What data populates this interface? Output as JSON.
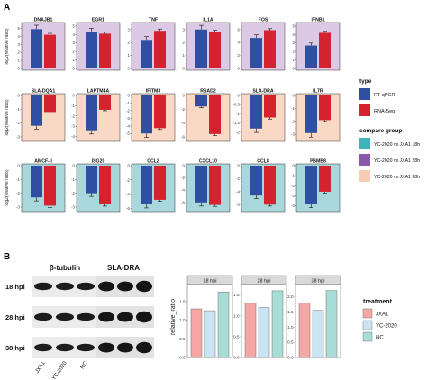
{
  "panel_a": {
    "label": "A",
    "ylabel": "log2(relative ratio)"
  },
  "panel_b": {
    "label": "B",
    "ylabel": "relative_ratio"
  },
  "colors": {
    "rtqpcr": "#2f4fa3",
    "rnaseq": "#d4232e",
    "bg_18h": "#dcc9e6",
    "bg_28h": "#a8d8dc",
    "bg_38h": "#f9d8c6",
    "legend_18h": "#3fb3bc",
    "legend_28h": "#8a5aa8",
    "legend_38h": "#f7cdb5",
    "treat_jxa1": "#f4a7a4",
    "treat_yc2020": "#c9e4f3",
    "treat_nc": "#a8dcd6"
  },
  "legend_type": {
    "title": "type",
    "items": [
      {
        "label": "RT-qPCR",
        "color": "#2f4fa3"
      },
      {
        "label": "RNA-Seq",
        "color": "#d4232e"
      }
    ]
  },
  "legend_group": {
    "title": "compare group",
    "items": [
      {
        "label": "YC-2020 vs JXA1 18h",
        "color": "#3fb3bc"
      },
      {
        "label": "YC-2020 vs JXA1 28h",
        "color": "#8a5aa8"
      },
      {
        "label": "YC-2020 vs JXA1 38h",
        "color": "#f7cdb5"
      }
    ]
  },
  "legend_treatment": {
    "title": "treatment",
    "items": [
      {
        "label": "JXA1",
        "color": "#f4a7a4"
      },
      {
        "label": "YC-2020",
        "color": "#c9e4f3"
      },
      {
        "label": "NC",
        "color": "#a8dcd6"
      }
    ]
  },
  "blot": {
    "col_headers": [
      "β-tubulin",
      "SLA-DRA"
    ],
    "row_labels": [
      "18 hpi",
      "28 hpi",
      "38 hpi"
    ],
    "lane_labels": [
      "JXA1",
      "YC-2020",
      "NC"
    ]
  },
  "chart_data": [
    {
      "type": "bar",
      "panel": "A",
      "series_names": [
        "RT-qPCR",
        "RNA-Seq"
      ],
      "facets": [
        {
          "gene": "DNAJB1",
          "group": "18h",
          "values": [
            4.9,
            4.2
          ],
          "ylim": [
            0,
            5.5
          ],
          "ticks": [
            0,
            1,
            2,
            3,
            4,
            5
          ]
        },
        {
          "gene": "EGR1",
          "group": "18h",
          "values": [
            4.3,
            4.1
          ],
          "ylim": [
            0,
            5.2
          ],
          "ticks": [
            0,
            1,
            2,
            3,
            4,
            5
          ]
        },
        {
          "gene": "TNF",
          "group": "18h",
          "values": [
            2.2,
            2.9
          ],
          "ylim": [
            0,
            3.4
          ],
          "ticks": [
            0,
            1,
            2,
            3
          ]
        },
        {
          "gene": "IL1A",
          "group": "18h",
          "values": [
            3.0,
            2.8
          ],
          "ylim": [
            0,
            3.4
          ],
          "ticks": [
            0,
            1,
            2,
            3
          ]
        },
        {
          "gene": "FOS",
          "group": "18h",
          "values": [
            4.7,
            5.9
          ],
          "ylim": [
            0,
            6.8
          ],
          "ticks": [
            0,
            2,
            4,
            6
          ]
        },
        {
          "gene": "IFNB1",
          "group": "18h",
          "values": [
            2.7,
            4.2
          ],
          "ylim": [
            0,
            5.2
          ],
          "ticks": [
            0,
            1,
            2,
            3,
            4,
            5
          ]
        },
        {
          "gene": "SLA-DQA1",
          "group": "38h",
          "values": [
            -2.2,
            -1.2
          ],
          "ylim": [
            -3.2,
            0
          ],
          "ticks": [
            0,
            -1,
            -2,
            -3
          ]
        },
        {
          "gene": "LAPTM4A",
          "group": "38h",
          "values": [
            -3.4,
            -1.4
          ],
          "ylim": [
            -4.3,
            0
          ],
          "ticks": [
            0,
            -1,
            -2,
            -3,
            -4
          ]
        },
        {
          "gene": "IFITM3",
          "group": "38h",
          "values": [
            -5.0,
            -4.3
          ],
          "ylim": [
            -5.8,
            0
          ],
          "ticks": [
            0,
            -1,
            -2,
            -3,
            -4,
            -5
          ]
        },
        {
          "gene": "RSAD2",
          "group": "38h",
          "values": [
            -1.6,
            -5.6
          ],
          "ylim": [
            -6.4,
            0
          ],
          "ticks": [
            0,
            -2,
            -4,
            -6
          ]
        },
        {
          "gene": "SLA-DRA",
          "group": "38h",
          "values": [
            -1.8,
            -1.2
          ],
          "ylim": [
            -2.4,
            0
          ],
          "ticks": [
            0,
            -0.5,
            -1,
            -1.5,
            -2
          ]
        },
        {
          "gene": "IL7R",
          "group": "38h",
          "values": [
            -2.9,
            -1.9
          ],
          "ylim": [
            -3.4,
            0
          ],
          "ticks": [
            0,
            -1,
            -2,
            -3
          ]
        },
        {
          "gene": "AMCF-II",
          "group": "28h",
          "values": [
            -2.3,
            -2.9
          ],
          "ylim": [
            -3.2,
            0
          ],
          "ticks": [
            0,
            -1,
            -2,
            -3
          ]
        },
        {
          "gene": "ISG20",
          "group": "28h",
          "values": [
            -2.0,
            -2.8
          ],
          "ylim": [
            -3.2,
            0
          ],
          "ticks": [
            0,
            -1,
            -2,
            -3
          ]
        },
        {
          "gene": "CCL2",
          "group": "28h",
          "values": [
            -5.4,
            -4.8
          ],
          "ylim": [
            -6.2,
            0
          ],
          "ticks": [
            0,
            -2,
            -4,
            -6
          ]
        },
        {
          "gene": "CXCL10",
          "group": "28h",
          "values": [
            -6.0,
            -6.4
          ],
          "ylim": [
            -7.2,
            0
          ],
          "ticks": [
            0,
            -2,
            -4,
            -6
          ]
        },
        {
          "gene": "CCL8",
          "group": "28h",
          "values": [
            -4.6,
            -6.0
          ],
          "ylim": [
            -6.8,
            0
          ],
          "ticks": [
            0,
            -2,
            -4,
            -6
          ]
        },
        {
          "gene": "PSMB8",
          "group": "28h",
          "values": [
            -3.8,
            -2.6
          ],
          "ylim": [
            -4.4,
            0
          ],
          "ticks": [
            0,
            -1,
            -2,
            -3,
            -4
          ]
        }
      ]
    },
    {
      "type": "bar",
      "panel": "B",
      "categories": [
        "JXA1",
        "YC-2020",
        "NC"
      ],
      "facets": [
        {
          "label": "18 hpi",
          "values": [
            1.3,
            1.25,
            1.75
          ],
          "ylim": [
            0,
            1.95
          ],
          "ticks": [
            0.0,
            0.5,
            1.0,
            1.5
          ]
        },
        {
          "label": "28 hpi",
          "values": [
            1.3,
            1.2,
            1.6
          ],
          "ylim": [
            0,
            1.75
          ],
          "ticks": [
            0.0,
            0.5,
            1.0,
            1.5
          ]
        },
        {
          "label": "38 hpi",
          "values": [
            1.8,
            1.55,
            2.2
          ],
          "ylim": [
            0,
            2.4
          ],
          "ticks": [
            0.0,
            0.5,
            1.0,
            1.5,
            2.0
          ]
        }
      ]
    }
  ]
}
